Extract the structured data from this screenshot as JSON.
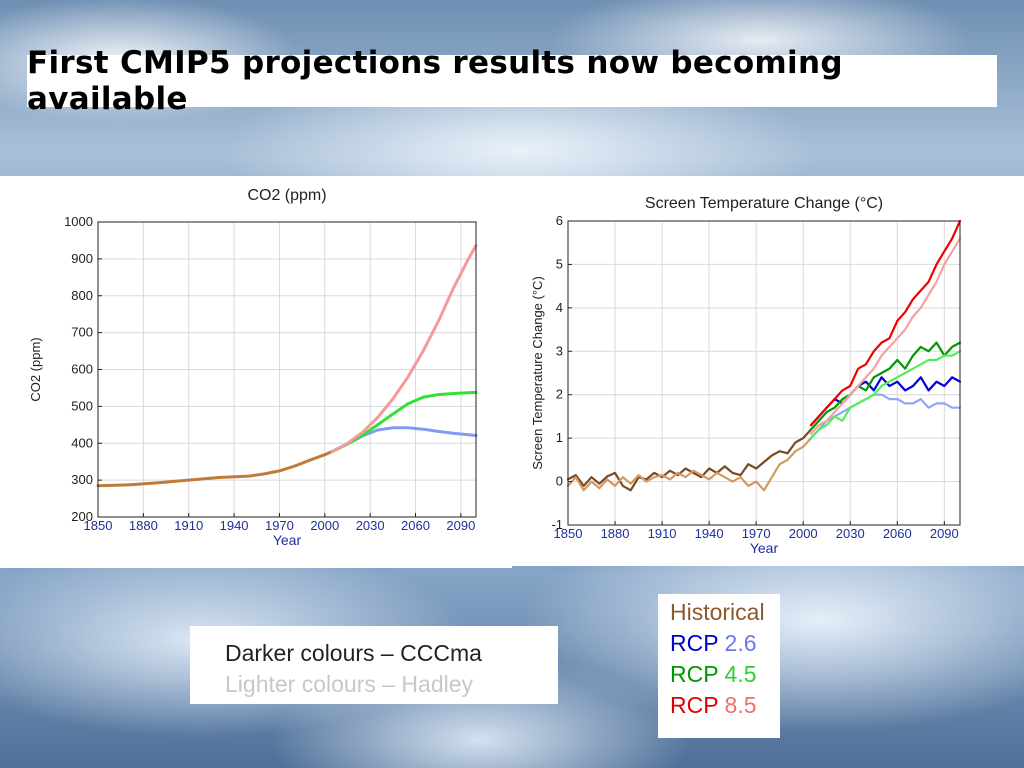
{
  "slide": {
    "title": "First CMIP5 projections results now becoming available"
  },
  "model_legend": {
    "dark": "Darker colours – CCCma",
    "light": "Lighter colours – Hadley"
  },
  "scenario_legend": [
    {
      "prefix": "Historical",
      "suffix": "",
      "prefix_color": "#8b5a2b",
      "suffix_color": "#c49a6c"
    },
    {
      "prefix": "RCP",
      "suffix": "2.6",
      "prefix_color": "#0000cc",
      "suffix_color": "#6a78e8"
    },
    {
      "prefix": "RCP",
      "suffix": "4.5",
      "prefix_color": "#009900",
      "suffix_color": "#33cc33"
    },
    {
      "prefix": "RCP",
      "suffix": "8.5",
      "prefix_color": "#e00000",
      "suffix_color": "#f07070"
    }
  ],
  "chart_data": [
    {
      "type": "line",
      "title": "CO2 (ppm)",
      "xlabel": "Year",
      "ylabel": "CO2 (ppm)",
      "xlim": [
        1850,
        2100
      ],
      "ylim": [
        200,
        1000
      ],
      "xticks": [
        1850,
        1880,
        1910,
        1940,
        1970,
        2000,
        2030,
        2060,
        2090
      ],
      "yticks": [
        200,
        300,
        400,
        500,
        600,
        700,
        800,
        900,
        1000
      ],
      "grid": true,
      "series": [
        {
          "name": "Historical",
          "color": "#c07a3a",
          "x": [
            1850,
            1870,
            1890,
            1910,
            1930,
            1950,
            1960,
            1970,
            1980,
            1990,
            2000,
            2005
          ],
          "y": [
            285,
            287,
            293,
            300,
            307,
            311,
            317,
            325,
            338,
            354,
            369,
            378
          ]
        },
        {
          "name": "RCP 2.6",
          "color": "#7f9cf0",
          "x": [
            2005,
            2015,
            2025,
            2035,
            2045,
            2055,
            2065,
            2075,
            2085,
            2100
          ],
          "y": [
            378,
            398,
            420,
            436,
            442,
            442,
            438,
            432,
            427,
            421
          ]
        },
        {
          "name": "RCP 4.5",
          "color": "#33e033",
          "x": [
            2005,
            2015,
            2025,
            2035,
            2045,
            2055,
            2065,
            2075,
            2085,
            2100
          ],
          "y": [
            378,
            398,
            422,
            450,
            479,
            507,
            525,
            532,
            535,
            538
          ]
        },
        {
          "name": "RCP 8.5",
          "color": "#f59a9a",
          "x": [
            2005,
            2015,
            2025,
            2035,
            2045,
            2055,
            2065,
            2075,
            2085,
            2095,
            2100
          ],
          "y": [
            378,
            400,
            430,
            470,
            520,
            580,
            650,
            730,
            820,
            900,
            936
          ]
        }
      ]
    },
    {
      "type": "line",
      "title": "Screen Temperature Change (°C)",
      "xlabel": "Year",
      "ylabel": "Screen Temperature Change (°C)",
      "xlim": [
        1850,
        2100
      ],
      "ylim": [
        -1,
        6
      ],
      "xticks": [
        1850,
        1880,
        1910,
        1940,
        1970,
        2000,
        2030,
        2060,
        2090
      ],
      "yticks": [
        -1,
        0,
        1,
        2,
        3,
        4,
        5,
        6
      ],
      "grid": true,
      "series": [
        {
          "name": "Historical CCCma",
          "color": "#7a4a20",
          "x": [
            1850,
            1855,
            1860,
            1865,
            1870,
            1875,
            1880,
            1885,
            1890,
            1895,
            1900,
            1905,
            1910,
            1915,
            1920,
            1925,
            1930,
            1935,
            1940,
            1945,
            1950,
            1955,
            1960,
            1965,
            1970,
            1975,
            1980,
            1985,
            1990,
            1995,
            2000,
            2005
          ],
          "y": [
            0.05,
            0.15,
            -0.1,
            0.1,
            -0.05,
            0.12,
            0.2,
            -0.1,
            -0.2,
            0.1,
            0.05,
            0.2,
            0.1,
            0.25,
            0.15,
            0.3,
            0.2,
            0.1,
            0.3,
            0.2,
            0.35,
            0.2,
            0.15,
            0.4,
            0.3,
            0.45,
            0.6,
            0.7,
            0.65,
            0.9,
            1.0,
            1.2
          ]
        },
        {
          "name": "Historical Hadley",
          "color": "#d09a60",
          "x": [
            1850,
            1855,
            1860,
            1865,
            1870,
            1875,
            1880,
            1885,
            1890,
            1895,
            1900,
            1905,
            1910,
            1915,
            1920,
            1925,
            1930,
            1935,
            1940,
            1945,
            1950,
            1955,
            1960,
            1965,
            1970,
            1975,
            1980,
            1985,
            1990,
            1995,
            2000,
            2005
          ],
          "y": [
            -0.1,
            0.1,
            -0.2,
            0.0,
            -0.15,
            0.05,
            -0.1,
            0.1,
            -0.05,
            0.15,
            0.0,
            0.1,
            0.15,
            0.05,
            0.2,
            0.1,
            0.25,
            0.15,
            0.05,
            0.2,
            0.1,
            0.0,
            0.1,
            -0.1,
            0.0,
            -0.2,
            0.1,
            0.4,
            0.5,
            0.7,
            0.8,
            1.0
          ]
        },
        {
          "name": "RCP 2.6 CCCma",
          "color": "#0000dd",
          "x": [
            2005,
            2010,
            2015,
            2020,
            2025,
            2030,
            2035,
            2040,
            2045,
            2050,
            2055,
            2060,
            2065,
            2070,
            2075,
            2080,
            2085,
            2090,
            2095,
            2100
          ],
          "y": [
            1.3,
            1.5,
            1.7,
            1.9,
            1.8,
            2.0,
            2.2,
            2.3,
            2.1,
            2.4,
            2.2,
            2.3,
            2.1,
            2.2,
            2.4,
            2.1,
            2.3,
            2.2,
            2.4,
            2.3
          ]
        },
        {
          "name": "RCP 2.6 Hadley",
          "color": "#8fa8f5",
          "x": [
            2005,
            2010,
            2015,
            2020,
            2025,
            2030,
            2035,
            2040,
            2045,
            2050,
            2055,
            2060,
            2065,
            2070,
            2075,
            2080,
            2085,
            2090,
            2095,
            2100
          ],
          "y": [
            1.0,
            1.2,
            1.4,
            1.5,
            1.6,
            1.7,
            1.8,
            1.9,
            2.0,
            2.0,
            1.9,
            1.9,
            1.8,
            1.8,
            1.9,
            1.7,
            1.8,
            1.8,
            1.7,
            1.7
          ]
        },
        {
          "name": "RCP 4.5 CCCma",
          "color": "#009900",
          "x": [
            2005,
            2010,
            2015,
            2020,
            2025,
            2030,
            2035,
            2040,
            2045,
            2050,
            2055,
            2060,
            2065,
            2070,
            2075,
            2080,
            2085,
            2090,
            2095,
            2100
          ],
          "y": [
            1.2,
            1.4,
            1.6,
            1.7,
            1.9,
            2.0,
            2.2,
            2.1,
            2.4,
            2.5,
            2.6,
            2.8,
            2.6,
            2.9,
            3.1,
            3.0,
            3.2,
            2.9,
            3.1,
            3.2
          ]
        },
        {
          "name": "RCP 4.5 Hadley",
          "color": "#55ee55",
          "x": [
            2005,
            2010,
            2015,
            2020,
            2025,
            2030,
            2035,
            2040,
            2045,
            2050,
            2055,
            2060,
            2065,
            2070,
            2075,
            2080,
            2085,
            2090,
            2095,
            2100
          ],
          "y": [
            1.0,
            1.2,
            1.3,
            1.5,
            1.4,
            1.7,
            1.8,
            1.9,
            2.0,
            2.2,
            2.3,
            2.4,
            2.5,
            2.6,
            2.7,
            2.8,
            2.8,
            2.9,
            2.9,
            3.0
          ]
        },
        {
          "name": "RCP 8.5 CCCma",
          "color": "#ee0000",
          "x": [
            2005,
            2010,
            2015,
            2020,
            2025,
            2030,
            2035,
            2040,
            2045,
            2050,
            2055,
            2060,
            2065,
            2070,
            2075,
            2080,
            2085,
            2090,
            2095,
            2100
          ],
          "y": [
            1.3,
            1.5,
            1.7,
            1.9,
            2.1,
            2.2,
            2.6,
            2.7,
            3.0,
            3.2,
            3.3,
            3.7,
            3.9,
            4.2,
            4.4,
            4.6,
            5.0,
            5.3,
            5.6,
            6.0
          ]
        },
        {
          "name": "RCP 8.5 Hadley",
          "color": "#f7a0a0",
          "x": [
            2005,
            2010,
            2015,
            2020,
            2025,
            2030,
            2035,
            2040,
            2045,
            2050,
            2055,
            2060,
            2065,
            2070,
            2075,
            2080,
            2085,
            2090,
            2095,
            2100
          ],
          "y": [
            1.1,
            1.3,
            1.4,
            1.6,
            1.8,
            2.0,
            2.2,
            2.4,
            2.6,
            2.9,
            3.1,
            3.3,
            3.5,
            3.8,
            4.0,
            4.3,
            4.6,
            5.0,
            5.3,
            5.6
          ]
        }
      ]
    }
  ]
}
